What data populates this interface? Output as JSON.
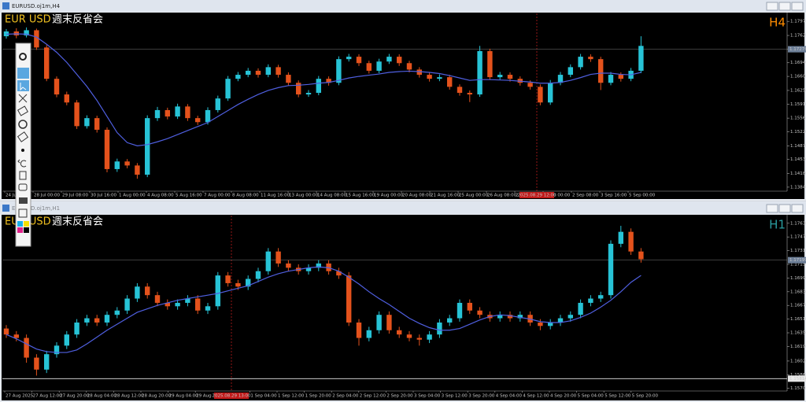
{
  "chart_data": [
    {
      "type": "candlestick",
      "window_title": "EURUSD.oj1m,H4",
      "symbol": "EUR USD",
      "note": "週末反省会",
      "timeframe": "H4",
      "colors": {
        "up": "#27c3d6",
        "down": "#e4521c",
        "ma": "#4f5fe0"
      },
      "ylim": [
        1.1374,
        1.1817
      ],
      "yticks": [
        {
          "value": 1.1797,
          "label": "1.17970"
        },
        {
          "value": 1.1762,
          "label": "1.17620"
        },
        {
          "value": 1.1728,
          "label": "1.17280"
        },
        {
          "value": 1.1694,
          "label": "1.16940"
        },
        {
          "value": 1.166,
          "label": "1.16600"
        },
        {
          "value": 1.1625,
          "label": "1.16250"
        },
        {
          "value": 1.1591,
          "label": "1.15910"
        },
        {
          "value": 1.1556,
          "label": "1.15560"
        },
        {
          "value": 1.1522,
          "label": "1.15220"
        },
        {
          "value": 1.1487,
          "label": "1.14870"
        },
        {
          "value": 1.1453,
          "label": "1.14530"
        },
        {
          "value": 1.1418,
          "label": "1.14180"
        },
        {
          "value": 1.1384,
          "label": "1.13840"
        }
      ],
      "bid": 1.17276,
      "marker_label": "2025.08.29 12:00",
      "x_labels": [
        "24 Jul 2025",
        "28 Jul 00:00",
        "29 Jul 08:00",
        "30 Jul 16:00",
        "1 Aug 00:00",
        "4 Aug 08:00",
        "5 Aug 16:00",
        "7 Aug 00:00",
        "8 Aug 08:00",
        "11 Aug 16:00",
        "13 Aug 00:00",
        "14 Aug 08:00",
        "15 Aug 16:00",
        "19 Aug 00:00",
        "20 Aug 08:00",
        "21 Aug 16:00",
        "25 Aug 00:00",
        "26 Aug 08:00",
        "27 Aug 16:00",
        "1 Sep 00:00",
        "2 Sep 08:00",
        "3 Sep 16:00",
        "5 Sep 00:00"
      ],
      "candles": [
        [
          1.176,
          1.1778,
          1.1754,
          1.1772
        ],
        [
          1.1772,
          1.178,
          1.1755,
          1.1762
        ],
        [
          1.1762,
          1.1782,
          1.1757,
          1.1775
        ],
        [
          1.1775,
          1.1779,
          1.1726,
          1.1732
        ],
        [
          1.1732,
          1.1738,
          1.1648,
          1.1654
        ],
        [
          1.1654,
          1.166,
          1.1608,
          1.1615
        ],
        [
          1.1615,
          1.1622,
          1.1588,
          1.1595
        ],
        [
          1.1595,
          1.1601,
          1.1529,
          1.1536
        ],
        [
          1.1536,
          1.1563,
          1.153,
          1.1556
        ],
        [
          1.1556,
          1.1562,
          1.152,
          1.1527
        ],
        [
          1.1527,
          1.1533,
          1.1421,
          1.1429
        ],
        [
          1.1429,
          1.1455,
          1.1422,
          1.1448
        ],
        [
          1.1448,
          1.1454,
          1.1431,
          1.1438
        ],
        [
          1.1438,
          1.1444,
          1.1405,
          1.1415
        ],
        [
          1.1415,
          1.1563,
          1.1409,
          1.1556
        ],
        [
          1.1556,
          1.1584,
          1.1549,
          1.1576
        ],
        [
          1.1576,
          1.1582,
          1.1553,
          1.156
        ],
        [
          1.156,
          1.1592,
          1.1554,
          1.1585
        ],
        [
          1.1585,
          1.1591,
          1.1549,
          1.1556
        ],
        [
          1.1556,
          1.1562,
          1.1539,
          1.1546
        ],
        [
          1.1546,
          1.1583,
          1.154,
          1.1576
        ],
        [
          1.1576,
          1.1612,
          1.157,
          1.1605
        ],
        [
          1.1605,
          1.1661,
          1.1599,
          1.1654
        ],
        [
          1.1654,
          1.1671,
          1.1648,
          1.1664
        ],
        [
          1.1664,
          1.1681,
          1.1658,
          1.1674
        ],
        [
          1.1674,
          1.168,
          1.1657,
          1.1664
        ],
        [
          1.1664,
          1.169,
          1.1658,
          1.1683
        ],
        [
          1.1683,
          1.1689,
          1.1657,
          1.1664
        ],
        [
          1.1664,
          1.167,
          1.1637,
          1.1644
        ],
        [
          1.1644,
          1.165,
          1.1608,
          1.1615
        ],
        [
          1.1615,
          1.1626,
          1.1609,
          1.1619
        ],
        [
          1.1619,
          1.1661,
          1.1613,
          1.1654
        ],
        [
          1.1654,
          1.166,
          1.1637,
          1.1644
        ],
        [
          1.1644,
          1.171,
          1.1638,
          1.1703
        ],
        [
          1.1703,
          1.1716,
          1.1697,
          1.1709
        ],
        [
          1.1709,
          1.1715,
          1.1686,
          1.1693
        ],
        [
          1.1693,
          1.1699,
          1.1667,
          1.1674
        ],
        [
          1.1674,
          1.1704,
          1.1668,
          1.1697
        ],
        [
          1.1697,
          1.1716,
          1.1691,
          1.1709
        ],
        [
          1.1709,
          1.1715,
          1.1686,
          1.1693
        ],
        [
          1.1693,
          1.1699,
          1.167,
          1.1677
        ],
        [
          1.1677,
          1.1683,
          1.1657,
          1.1664
        ],
        [
          1.1664,
          1.167,
          1.1647,
          1.1654
        ],
        [
          1.1654,
          1.1665,
          1.1648,
          1.1658
        ],
        [
          1.1658,
          1.1664,
          1.1627,
          1.1634
        ],
        [
          1.1634,
          1.164,
          1.1612,
          1.1619
        ],
        [
          1.1619,
          1.1625,
          1.1596,
          1.1615
        ],
        [
          1.1615,
          1.1736,
          1.1609,
          1.1723
        ],
        [
          1.1723,
          1.1729,
          1.1651,
          1.1658
        ],
        [
          1.1658,
          1.1671,
          1.1652,
          1.1664
        ],
        [
          1.1664,
          1.167,
          1.1647,
          1.1654
        ],
        [
          1.1654,
          1.166,
          1.1637,
          1.1644
        ],
        [
          1.1644,
          1.165,
          1.1627,
          1.1634
        ],
        [
          1.1634,
          1.164,
          1.1588,
          1.1595
        ],
        [
          1.1595,
          1.1651,
          1.1589,
          1.1644
        ],
        [
          1.1644,
          1.1671,
          1.1638,
          1.1664
        ],
        [
          1.1664,
          1.169,
          1.1658,
          1.1683
        ],
        [
          1.1683,
          1.1716,
          1.1677,
          1.1709
        ],
        [
          1.1709,
          1.1715,
          1.1696,
          1.1703
        ],
        [
          1.1703,
          1.1709,
          1.1626,
          1.1644
        ],
        [
          1.1644,
          1.1671,
          1.1638,
          1.1664
        ],
        [
          1.1664,
          1.167,
          1.1647,
          1.1654
        ],
        [
          1.1654,
          1.1681,
          1.1648,
          1.1674
        ],
        [
          1.1674,
          1.176,
          1.1668,
          1.1736
        ]
      ],
      "ma": [
        1.1765,
        1.1766,
        1.1765,
        1.1758,
        1.174,
        1.172,
        1.1695,
        1.1665,
        1.1635,
        1.16,
        1.156,
        1.152,
        1.1495,
        1.1487,
        1.149,
        1.1497,
        1.1505,
        1.1515,
        1.1525,
        1.1535,
        1.1545,
        1.156,
        1.1575,
        1.159,
        1.1603,
        1.1615,
        1.1625,
        1.1632,
        1.1637,
        1.1638,
        1.164,
        1.1643,
        1.1645,
        1.165,
        1.1656,
        1.166,
        1.1663,
        1.1666,
        1.167,
        1.1672,
        1.1673,
        1.1672,
        1.167,
        1.1667,
        1.1662,
        1.1656,
        1.165,
        1.1652,
        1.1652,
        1.1651,
        1.165,
        1.1648,
        1.1646,
        1.1643,
        1.1643,
        1.1645,
        1.165,
        1.1657,
        1.1665,
        1.1668,
        1.1668,
        1.1665,
        1.1664,
        1.167
      ]
    },
    {
      "type": "candlestick",
      "window_title": "EURUSD.oj1m,H1",
      "symbol": "EUR USD",
      "note": "週末反省会",
      "timeframe": "H1",
      "colors": {
        "up": "#27c3d6",
        "down": "#e4521c",
        "ma": "#4f5fe0"
      },
      "ylim": [
        1.1567,
        1.1772
      ],
      "yticks": [
        {
          "value": 1.1763,
          "label": "1.17630"
        },
        {
          "value": 1.1747,
          "label": "1.17470"
        },
        {
          "value": 1.1731,
          "label": "1.17310"
        },
        {
          "value": 1.1715,
          "label": "1.17150"
        },
        {
          "value": 1.1699,
          "label": "1.16990"
        },
        {
          "value": 1.1683,
          "label": "1.16830"
        },
        {
          "value": 1.1667,
          "label": "1.16670"
        },
        {
          "value": 1.1651,
          "label": "1.16510"
        },
        {
          "value": 1.1635,
          "label": "1.16350"
        },
        {
          "value": 1.1619,
          "label": "1.16190"
        },
        {
          "value": 1.1602,
          "label": "1.16020"
        },
        {
          "value": 1.1586,
          "label": "1.15860"
        },
        {
          "value": 1.157,
          "label": "1.15700"
        }
      ],
      "bid": 1.17199,
      "hline": 1.15814,
      "marker_label": "2025.08.29 13:00",
      "x_labels": [
        "27 Aug 2025",
        "27 Aug 12:00",
        "27 Aug 20:00",
        "28 Aug 04:00",
        "28 Aug 12:00",
        "28 Aug 20:00",
        "29 Aug 04:00",
        "29 Aug 12:00",
        "1 Sep 04:00",
        "1 Sep 12:00",
        "1 Sep 20:00",
        "2 Sep 04:00",
        "2 Sep 12:00",
        "2 Sep 20:00",
        "3 Sep 04:00",
        "3 Sep 12:00",
        "3 Sep 20:00",
        "4 Sep 04:00",
        "4 Sep 12:00",
        "4 Sep 20:00",
        "5 Sep 04:00",
        "5 Sep 12:00",
        "5 Sep 20:00"
      ],
      "candles": [
        [
          1.164,
          1.1644,
          1.1629,
          1.1633
        ],
        [
          1.1633,
          1.1637,
          1.1625,
          1.1629
        ],
        [
          1.1629,
          1.1633,
          1.16,
          1.1606
        ],
        [
          1.1606,
          1.161,
          1.1585,
          1.1592
        ],
        [
          1.1592,
          1.1614,
          1.1588,
          1.161
        ],
        [
          1.161,
          1.1624,
          1.1606,
          1.162
        ],
        [
          1.162,
          1.1637,
          1.1616,
          1.1633
        ],
        [
          1.1633,
          1.1651,
          1.1629,
          1.1647
        ],
        [
          1.1647,
          1.1656,
          1.1643,
          1.1652
        ],
        [
          1.1652,
          1.1656,
          1.1643,
          1.1647
        ],
        [
          1.1647,
          1.166,
          1.1643,
          1.1656
        ],
        [
          1.1656,
          1.1665,
          1.1652,
          1.1661
        ],
        [
          1.1661,
          1.1679,
          1.1657,
          1.1675
        ],
        [
          1.1675,
          1.1693,
          1.1671,
          1.1689
        ],
        [
          1.1689,
          1.1693,
          1.1675,
          1.1679
        ],
        [
          1.1679,
          1.1683,
          1.1666,
          1.167
        ],
        [
          1.167,
          1.1674,
          1.1662,
          1.1666
        ],
        [
          1.1666,
          1.1674,
          1.1662,
          1.167
        ],
        [
          1.167,
          1.1679,
          1.1666,
          1.1675
        ],
        [
          1.1675,
          1.1679,
          1.1657,
          1.1661
        ],
        [
          1.1661,
          1.167,
          1.1657,
          1.1666
        ],
        [
          1.1666,
          1.1706,
          1.1662,
          1.1702
        ],
        [
          1.1702,
          1.1706,
          1.1689,
          1.1693
        ],
        [
          1.1693,
          1.1697,
          1.1685,
          1.1689
        ],
        [
          1.1689,
          1.1702,
          1.1685,
          1.1698
        ],
        [
          1.1698,
          1.1711,
          1.1694,
          1.1707
        ],
        [
          1.1707,
          1.1734,
          1.1703,
          1.173
        ],
        [
          1.173,
          1.1734,
          1.1712,
          1.1716
        ],
        [
          1.1716,
          1.172,
          1.1707,
          1.1711
        ],
        [
          1.1711,
          1.1715,
          1.1703,
          1.1707
        ],
        [
          1.1707,
          1.1715,
          1.1703,
          1.1711
        ],
        [
          1.1711,
          1.172,
          1.1707,
          1.1716
        ],
        [
          1.1716,
          1.172,
          1.1703,
          1.1707
        ],
        [
          1.1707,
          1.1711,
          1.1698,
          1.1702
        ],
        [
          1.1702,
          1.1706,
          1.1643,
          1.1647
        ],
        [
          1.1647,
          1.1651,
          1.162,
          1.1629
        ],
        [
          1.1629,
          1.1642,
          1.1625,
          1.1638
        ],
        [
          1.1638,
          1.166,
          1.1634,
          1.1656
        ],
        [
          1.1656,
          1.166,
          1.1634,
          1.1638
        ],
        [
          1.1638,
          1.1642,
          1.1629,
          1.1633
        ],
        [
          1.1633,
          1.1637,
          1.1625,
          1.1629
        ],
        [
          1.1629,
          1.1633,
          1.162,
          1.1627
        ],
        [
          1.1627,
          1.1637,
          1.1623,
          1.1633
        ],
        [
          1.1633,
          1.1651,
          1.1629,
          1.1647
        ],
        [
          1.1647,
          1.1656,
          1.1643,
          1.1652
        ],
        [
          1.1652,
          1.1674,
          1.1648,
          1.167
        ],
        [
          1.167,
          1.1674,
          1.1657,
          1.1661
        ],
        [
          1.1661,
          1.1665,
          1.1652,
          1.1656
        ],
        [
          1.1656,
          1.166,
          1.1648,
          1.1652
        ],
        [
          1.1652,
          1.166,
          1.1648,
          1.1656
        ],
        [
          1.1656,
          1.166,
          1.1648,
          1.1652
        ],
        [
          1.1652,
          1.166,
          1.1648,
          1.1656
        ],
        [
          1.1656,
          1.166,
          1.1643,
          1.1647
        ],
        [
          1.1647,
          1.1651,
          1.1638,
          1.1643
        ],
        [
          1.1643,
          1.1651,
          1.1639,
          1.1647
        ],
        [
          1.1647,
          1.1656,
          1.1643,
          1.1652
        ],
        [
          1.1652,
          1.166,
          1.1648,
          1.1656
        ],
        [
          1.1656,
          1.1674,
          1.1652,
          1.167
        ],
        [
          1.167,
          1.1679,
          1.1666,
          1.1675
        ],
        [
          1.1675,
          1.1683,
          1.1671,
          1.1679
        ],
        [
          1.1679,
          1.1743,
          1.1675,
          1.1739
        ],
        [
          1.1739,
          1.176,
          1.1735,
          1.1753
        ],
        [
          1.1753,
          1.1757,
          1.1726,
          1.173
        ],
        [
          1.173,
          1.1734,
          1.1717,
          1.1721
        ]
      ],
      "ma": [
        1.1633,
        1.1628,
        1.1622,
        1.1616,
        1.1613,
        1.1612,
        1.1612,
        1.1615,
        1.1622,
        1.163,
        1.1638,
        1.1645,
        1.1652,
        1.1659,
        1.1663,
        1.1667,
        1.167,
        1.1673,
        1.1675,
        1.1677,
        1.1679,
        1.1681,
        1.1684,
        1.1687,
        1.169,
        1.1695,
        1.17,
        1.1704,
        1.1707,
        1.1709,
        1.1711,
        1.1712,
        1.1711,
        1.1707,
        1.17,
        1.1692,
        1.1683,
        1.1675,
        1.1668,
        1.166,
        1.1652,
        1.1646,
        1.1641,
        1.1638,
        1.1638,
        1.164,
        1.1645,
        1.165,
        1.1654,
        1.1656,
        1.1655,
        1.1653,
        1.1651,
        1.1648,
        1.1647,
        1.1647,
        1.1649,
        1.1653,
        1.1658,
        1.1665,
        1.1673,
        1.1683,
        1.1694,
        1.1702
      ]
    }
  ]
}
